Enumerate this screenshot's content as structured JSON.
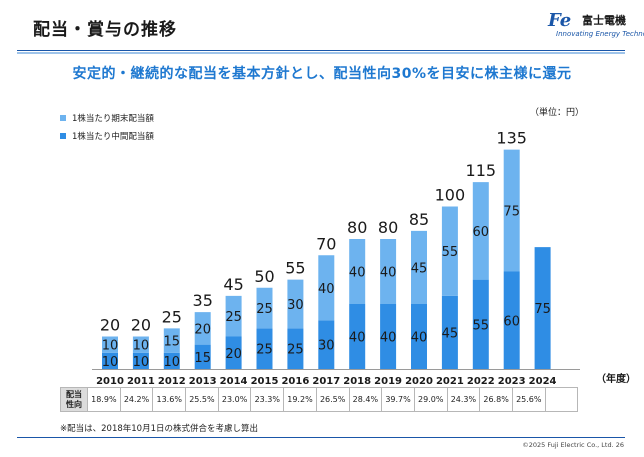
{
  "header": {
    "title": "配当・賞与の推移",
    "logo_mark": "Fe",
    "logo_name": "富士電機",
    "logo_tagline": "Innovating Energy Technology"
  },
  "subtitle": "安定的・継続的な配当を基本方針とし、配当性向30%を目安に株主様に還元",
  "unit_label": "（単位：円）",
  "table": {
    "header_line1": "配当",
    "header_line2": "性向"
  },
  "note": "※配当は、2018年10月1日の株式併合を考慮し算出",
  "copyright": "©2025 Fuji Electric Co., Ltd. 26",
  "colors": {
    "year_end": "#6db3ef",
    "interim": "#2f8de4",
    "accent": "#1e78d0"
  },
  "chart_data": {
    "type": "bar",
    "stacked": true,
    "categories": [
      "2010",
      "2011",
      "2012",
      "2013",
      "2014",
      "2015",
      "2016",
      "2017",
      "2018",
      "2019",
      "2020",
      "2021",
      "2022",
      "2023",
      "2024"
    ],
    "x_suffix": "（年度）",
    "series": [
      {
        "name": "1株当たり中間配当額",
        "values": [
          10,
          10,
          10,
          15,
          20,
          25,
          25,
          30,
          40,
          40,
          40,
          45,
          55,
          60,
          75
        ]
      },
      {
        "name": "1株当たり期末配当額",
        "values": [
          10,
          10,
          15,
          20,
          25,
          25,
          30,
          40,
          40,
          40,
          45,
          55,
          60,
          75,
          null
        ]
      }
    ],
    "totals": [
      "20",
      "20",
      "25",
      "35",
      "45",
      "50",
      "55",
      "70",
      "80",
      "80",
      "85",
      "100",
      "115",
      "135",
      ""
    ],
    "payout_ratio": [
      "18.9%",
      "24.2%",
      "13.6%",
      "25.5%",
      "23.0%",
      "23.3%",
      "19.2%",
      "26.5%",
      "28.4%",
      "39.7%",
      "29.0%",
      "24.3%",
      "26.8%",
      "25.6%",
      ""
    ],
    "ylim": [
      0,
      135
    ],
    "grid": false,
    "legend_position": "top-left"
  }
}
